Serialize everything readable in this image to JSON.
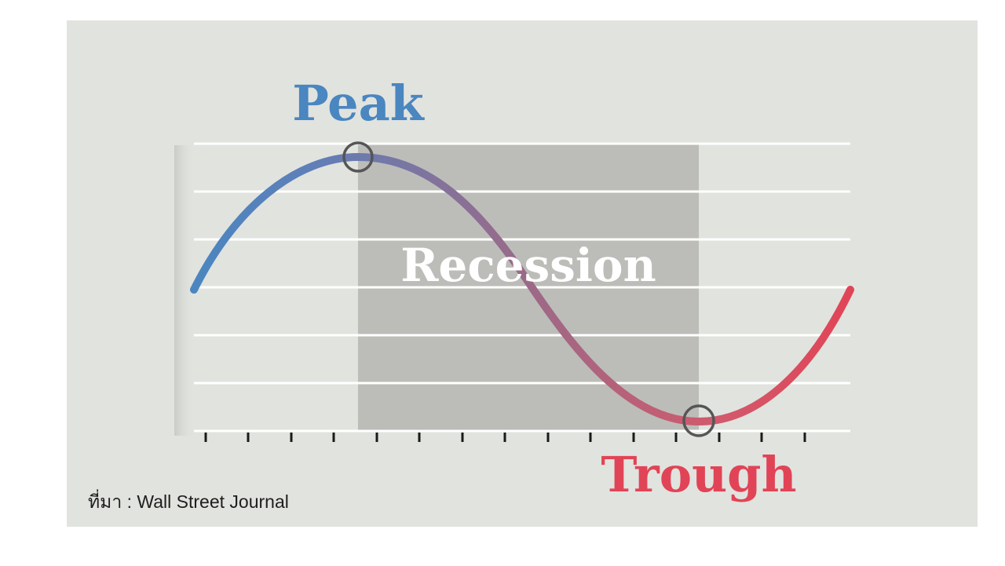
{
  "labels": {
    "peak": "Peak",
    "recession": "Recession",
    "trough": "Trough"
  },
  "source": "ที่มา : Wall Street Journal",
  "colors": {
    "background": "#e1e3df",
    "recession_band": "#bcbdb9",
    "peak": "#4a86c0",
    "trough": "#e14456",
    "gridline": "#ffffff",
    "marker_circle": "#555555"
  },
  "markers": [
    "peak-marker",
    "trough-marker"
  ]
}
